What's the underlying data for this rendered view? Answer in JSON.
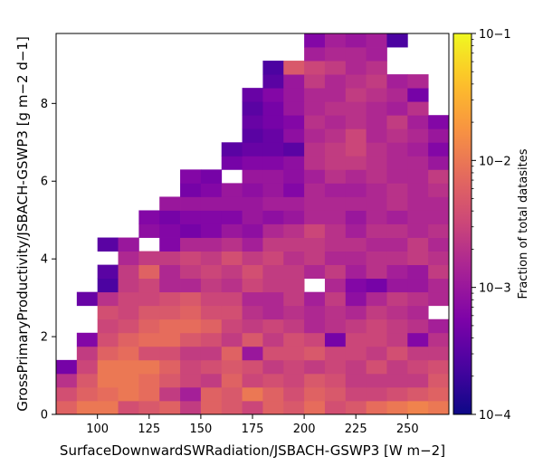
{
  "chart_data": {
    "type": "heatmap",
    "xlabel": "SurfaceDownwardSWRadiation/JSBACH-GSWP3 [W m−2]",
    "ylabel": "GrossPrimaryProductivity/JSBACH-GSWP3 [g m−2 d−1]",
    "x_ticks": [
      100,
      125,
      150,
      175,
      200,
      225,
      250
    ],
    "y_ticks": [
      0,
      2,
      4,
      6,
      8
    ],
    "xlim": [
      80,
      270
    ],
    "ylim": [
      0,
      9.8
    ],
    "x_bin_width": 10,
    "y_bin_width": 0.35,
    "colorbar": {
      "label": "Fraction of total datasites",
      "scale": "log",
      "min": 0.0001,
      "max": 0.1,
      "tick_labels": [
        "10−4",
        "10−3",
        "10−2",
        "10−1"
      ],
      "tick_values": [
        0.0001,
        0.001,
        0.01,
        0.1
      ],
      "colormap": "plasma"
    },
    "log_fraction_rows_bottom_to_top": [
      [
        -2.2,
        -2.0,
        -2.0,
        -2.4,
        -2.3,
        -2.2,
        -2.6,
        -2.2,
        -2.3,
        -2.5,
        -2.2,
        -2.3,
        -2.1,
        -2.4,
        -2.3,
        -2.1,
        -2.0,
        -1.9,
        -2.0,
        -1.9,
        -1.9,
        -1.9,
        -2.1,
        -2.1
      ],
      [
        -2.4,
        -2.2,
        -2.1,
        -2.0,
        -2.1,
        -2.6,
        -2.9,
        -2.2,
        -2.3,
        -2.0,
        -2.2,
        -2.4,
        -2.2,
        -2.3,
        -2.5,
        -2.5,
        -2.4,
        -2.3,
        -2.2,
        -2.5,
        -2.0,
        -2.3,
        -2.3,
        -2.6
      ],
      [
        -2.7,
        -2.3,
        -2.0,
        -2.0,
        -2.1,
        -2.3,
        -2.5,
        -2.6,
        -2.2,
        -2.5,
        -2.4,
        -2.5,
        -2.3,
        -2.4,
        -2.6,
        -2.6,
        -2.6,
        -2.6,
        -2.3,
        -2.4,
        -2.5,
        -2.3,
        -3.6,
        -3.2
      ],
      [
        -3.3,
        -2.5,
        -2.0,
        -2.0,
        -2.0,
        -2.2,
        -2.5,
        -2.4,
        -2.3,
        -2.4,
        -2.6,
        -2.5,
        -2.6,
        -2.5,
        -2.6,
        -2.4,
        -2.6,
        -2.5,
        -2.4,
        -2.5,
        -2.4,
        -2.3,
        -2.4,
        -3.1
      ],
      [
        null,
        -2.6,
        -2.2,
        -2.1,
        -2.4,
        -2.4,
        -2.6,
        -2.6,
        -2.2,
        -3.0,
        -2.4,
        -2.4,
        -2.3,
        -2.5,
        -2.5,
        -2.6,
        -2.4,
        -2.6,
        -2.6,
        -2.5,
        -2.5,
        -2.4,
        -2.4,
        -3.3
      ],
      [
        null,
        -3.2,
        -2.4,
        -2.2,
        -2.1,
        -2.1,
        -2.3,
        -2.4,
        -2.6,
        -2.3,
        -2.6,
        -2.4,
        -2.5,
        -3.3,
        -2.5,
        -2.5,
        -2.6,
        -3.2,
        -2.7,
        -3.1,
        -2.6,
        -2.4,
        -3.1,
        -3.4
      ],
      [
        null,
        null,
        -2.5,
        -2.4,
        -2.2,
        -2.1,
        -2.1,
        -2.2,
        -2.5,
        -2.6,
        -2.5,
        -2.6,
        -2.8,
        -2.7,
        -2.6,
        -2.5,
        -2.6,
        -2.7,
        -2.9,
        -2.4,
        -2.6,
        -2.6,
        null,
        null
      ],
      [
        null,
        null,
        -2.4,
        -2.5,
        -2.3,
        -2.3,
        -2.2,
        -2.4,
        -2.4,
        -2.7,
        -2.8,
        -2.7,
        -2.8,
        -2.7,
        -2.8,
        -2.6,
        -2.7,
        -2.8,
        null,
        -2.6,
        -2.6,
        -2.8,
        null,
        null
      ],
      [
        null,
        -3.4,
        -2.7,
        -2.5,
        -2.5,
        -2.4,
        -2.3,
        -2.5,
        -2.5,
        -2.8,
        -2.8,
        -2.6,
        -2.9,
        -2.6,
        -3.1,
        -2.8,
        -2.6,
        -2.7,
        -2.8,
        -2.6,
        -2.7,
        -2.7,
        null,
        null
      ],
      [
        null,
        null,
        -3.6,
        -2.6,
        -2.5,
        -2.8,
        -2.8,
        -2.6,
        -2.7,
        -2.5,
        -2.6,
        -2.6,
        null,
        -2.8,
        -3.2,
        -3.3,
        -3.0,
        -3.0,
        -2.8,
        -2.7,
        -2.8,
        -2.8,
        null,
        null
      ],
      [
        null,
        null,
        -3.5,
        -2.6,
        -2.2,
        -2.8,
        -2.6,
        -2.5,
        -2.6,
        -2.4,
        -2.6,
        -2.6,
        -2.8,
        -2.6,
        -2.9,
        -2.7,
        -2.9,
        -3.0,
        -2.6,
        -2.6,
        -2.7,
        -2.6,
        null,
        null
      ],
      [
        null,
        null,
        null,
        -2.8,
        -2.6,
        -2.6,
        -2.5,
        -2.6,
        -2.4,
        -2.6,
        -2.5,
        -2.7,
        -2.6,
        -2.8,
        -2.8,
        -2.7,
        -2.7,
        -2.6,
        -2.7,
        -2.7,
        -2.6,
        -2.7,
        null,
        null
      ],
      [
        null,
        null,
        -3.5,
        -3.0,
        null,
        -3.2,
        -2.8,
        -2.8,
        -2.7,
        -2.9,
        -2.6,
        -2.6,
        -2.6,
        -2.7,
        -2.7,
        -2.8,
        -2.8,
        -2.6,
        -2.8,
        -2.7,
        -2.6,
        null,
        null,
        null
      ],
      [
        null,
        null,
        null,
        null,
        -3.1,
        -3.2,
        -3.3,
        -3.2,
        -3.0,
        -3.1,
        -2.8,
        -2.7,
        -2.5,
        -2.7,
        -2.9,
        -2.7,
        -2.7,
        -2.8,
        -2.7,
        -2.7,
        -3.0,
        null,
        null,
        null
      ],
      [
        null,
        null,
        null,
        null,
        -3.2,
        -3.3,
        -3.2,
        -3.2,
        -3.2,
        -3.0,
        -3.1,
        -3.0,
        -2.8,
        -2.8,
        -3.0,
        -2.8,
        -2.9,
        -2.8,
        -2.8,
        -2.6,
        -3.3,
        null,
        null,
        null
      ],
      [
        null,
        null,
        null,
        null,
        null,
        -3.0,
        -3.0,
        -3.0,
        -3.0,
        -3.0,
        -2.9,
        -2.9,
        -2.8,
        -2.8,
        -2.8,
        -2.8,
        -2.7,
        -2.8,
        -2.8,
        -2.8,
        null,
        null,
        -3.4,
        null
      ],
      [
        null,
        null,
        null,
        null,
        null,
        null,
        -3.3,
        -3.2,
        -3.0,
        -3.1,
        -3.0,
        -3.2,
        -2.8,
        -2.9,
        -2.9,
        -2.8,
        -2.7,
        -2.8,
        -2.7,
        -3.0,
        null,
        null,
        -3.3,
        null
      ],
      [
        null,
        null,
        null,
        null,
        null,
        null,
        -3.2,
        -3.3,
        null,
        -3.0,
        -3.0,
        -3.1,
        -2.9,
        -2.7,
        -2.8,
        -2.7,
        -2.8,
        -2.8,
        -2.6,
        -3.3,
        null,
        null,
        -3.4,
        null
      ],
      [
        null,
        null,
        null,
        null,
        null,
        null,
        null,
        null,
        -3.3,
        -3.2,
        -3.2,
        -3.1,
        -2.7,
        -2.6,
        -2.6,
        -2.7,
        -2.8,
        -2.8,
        -3.0,
        -3.2,
        -3.4,
        null,
        null,
        null
      ],
      [
        null,
        null,
        null,
        null,
        null,
        null,
        null,
        null,
        -3.5,
        -3.4,
        -3.4,
        -3.5,
        -2.7,
        -2.6,
        -2.5,
        -2.7,
        -2.8,
        -2.9,
        -3.2,
        -3.3,
        null,
        null,
        null,
        null
      ],
      [
        null,
        null,
        null,
        null,
        null,
        null,
        null,
        null,
        null,
        -3.5,
        -3.4,
        -3.1,
        -2.8,
        -2.7,
        -2.5,
        -2.8,
        -2.7,
        -2.8,
        -3.0,
        -3.2,
        null,
        null,
        null,
        null
      ],
      [
        null,
        null,
        null,
        null,
        null,
        null,
        null,
        null,
        null,
        -3.4,
        -3.3,
        -3.2,
        -2.7,
        -2.8,
        -2.7,
        -2.8,
        -2.6,
        -2.9,
        -3.2,
        -3.2,
        null,
        null,
        null,
        null
      ],
      [
        null,
        null,
        null,
        null,
        null,
        null,
        null,
        null,
        null,
        -3.5,
        -3.3,
        -3.0,
        -2.8,
        -2.7,
        -2.7,
        -2.8,
        -2.9,
        -2.7,
        null,
        null,
        null,
        -3.5,
        null,
        null
      ],
      [
        null,
        null,
        null,
        null,
        null,
        null,
        null,
        null,
        null,
        -3.4,
        -3.2,
        -3.0,
        -2.8,
        -2.8,
        -2.6,
        -2.7,
        -2.8,
        -3.3,
        null,
        null,
        null,
        null,
        null,
        null
      ],
      [
        null,
        null,
        null,
        null,
        null,
        null,
        null,
        null,
        null,
        null,
        -3.5,
        -3.0,
        -2.6,
        -2.8,
        -2.7,
        -2.6,
        -2.9,
        -2.8,
        null,
        null,
        null,
        null,
        null,
        null
      ],
      [
        null,
        null,
        null,
        null,
        null,
        null,
        null,
        null,
        null,
        null,
        -3.6,
        -2.3,
        -2.5,
        -2.6,
        -2.8,
        -2.7,
        null,
        null,
        null,
        null,
        null,
        null,
        null,
        null
      ],
      [
        null,
        null,
        null,
        null,
        null,
        null,
        null,
        null,
        null,
        null,
        null,
        null,
        -2.9,
        -2.8,
        -2.8,
        -2.9,
        null,
        null,
        null,
        null,
        null,
        null,
        null,
        null
      ],
      [
        null,
        null,
        null,
        null,
        null,
        null,
        null,
        null,
        null,
        null,
        null,
        null,
        -3.2,
        -2.9,
        -3.0,
        -2.9,
        -3.6,
        null,
        null,
        null,
        null,
        null,
        null,
        null
      ]
    ]
  }
}
